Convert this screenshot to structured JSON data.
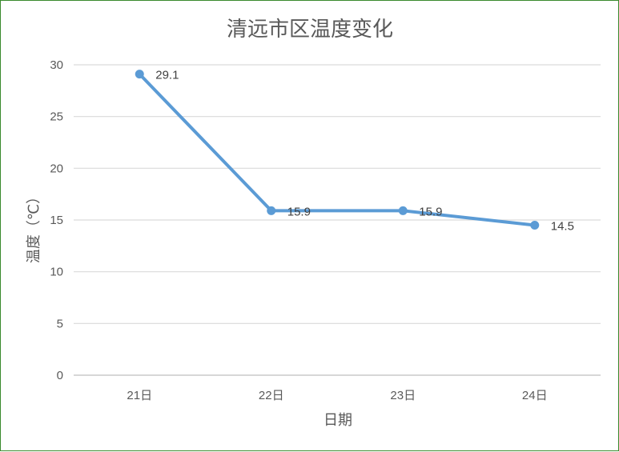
{
  "chart_data": {
    "type": "line",
    "title": "清远市区温度变化",
    "xlabel": "日期",
    "ylabel": "温度（℃）",
    "categories": [
      "21日",
      "22日",
      "23日",
      "24日"
    ],
    "series": [
      {
        "values": [
          29.1,
          15.9,
          15.9,
          14.5
        ],
        "color": "#5b9bd5"
      }
    ],
    "data_labels": [
      "29.1",
      "15.9",
      "15.9",
      "14.5"
    ],
    "ylim": [
      0,
      30
    ],
    "yticks": [
      0,
      5,
      10,
      15,
      20,
      25,
      30
    ],
    "grid": true,
    "legend": "none"
  }
}
